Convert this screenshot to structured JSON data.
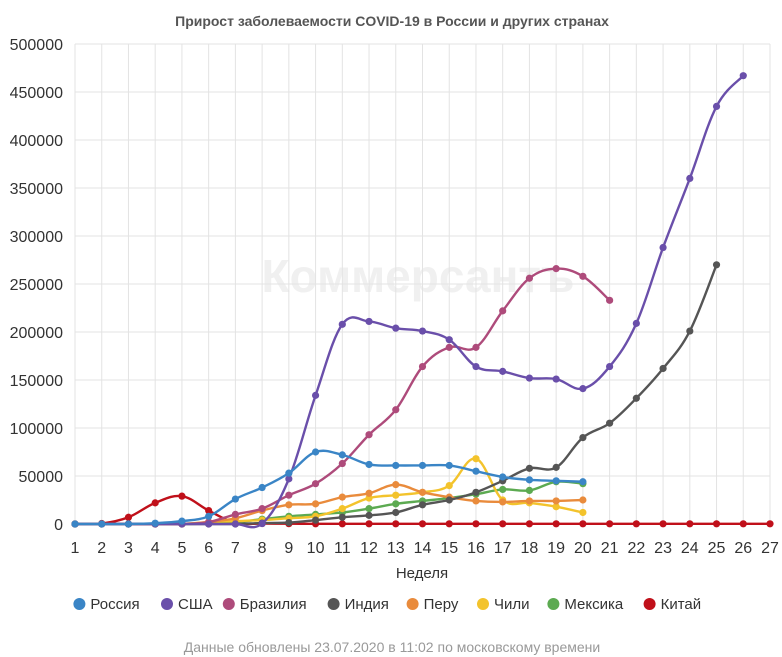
{
  "chart_data": {
    "type": "line",
    "title": "Прирост заболеваемости COVID-19 в России и других странах",
    "xlabel": "Неделя",
    "ylabel": "",
    "x": [
      1,
      2,
      3,
      4,
      5,
      6,
      7,
      8,
      9,
      10,
      11,
      12,
      13,
      14,
      15,
      16,
      17,
      18,
      19,
      20,
      21,
      22,
      23,
      24,
      25,
      26,
      27
    ],
    "xlim": [
      1,
      27
    ],
    "ylim": [
      0,
      500000
    ],
    "yticks": [
      "0",
      "50000",
      "100000",
      "150000",
      "200000",
      "250000",
      "300000",
      "350000",
      "400000",
      "450000",
      "500000"
    ],
    "grid": true,
    "legend_position": "bottom",
    "watermark": "Коммерсантъ",
    "footer": "Данные обновлены 23.07.2020 в 11:02 по московскому времени",
    "series": [
      {
        "name": "Россия",
        "color": "#3a85c6",
        "points": [
          [
            1,
            0
          ],
          [
            2,
            0
          ],
          [
            3,
            0
          ],
          [
            4,
            800
          ],
          [
            5,
            3000
          ],
          [
            6,
            8000
          ],
          [
            7,
            26000
          ],
          [
            8,
            38000
          ],
          [
            9,
            53000
          ],
          [
            10,
            75000
          ],
          [
            11,
            72000
          ],
          [
            12,
            62000
          ],
          [
            13,
            61000
          ],
          [
            14,
            61000
          ],
          [
            15,
            61000
          ],
          [
            16,
            55000
          ],
          [
            17,
            49000
          ],
          [
            18,
            46000
          ],
          [
            19,
            45000
          ],
          [
            20,
            44000
          ]
        ]
      },
      {
        "name": "США",
        "color": "#6a4faa",
        "points": [
          [
            1,
            0
          ],
          [
            2,
            0
          ],
          [
            3,
            0
          ],
          [
            4,
            0
          ],
          [
            5,
            0
          ],
          [
            6,
            0
          ],
          [
            7,
            0
          ],
          [
            8,
            500
          ],
          [
            9,
            47000
          ],
          [
            10,
            134000
          ],
          [
            11,
            208000
          ],
          [
            12,
            211000
          ],
          [
            13,
            204000
          ],
          [
            14,
            201000
          ],
          [
            15,
            192000
          ],
          [
            16,
            164000
          ],
          [
            17,
            159000
          ],
          [
            18,
            152000
          ],
          [
            19,
            151000
          ],
          [
            20,
            141000
          ],
          [
            21,
            164000
          ],
          [
            22,
            209000
          ],
          [
            23,
            288000
          ],
          [
            24,
            360000
          ],
          [
            25,
            435000
          ],
          [
            26,
            467000
          ]
        ]
      },
      {
        "name": "Бразилия",
        "color": "#ae4b7b",
        "points": [
          [
            1,
            0
          ],
          [
            2,
            0
          ],
          [
            3,
            0
          ],
          [
            4,
            0
          ],
          [
            5,
            0
          ],
          [
            6,
            2000
          ],
          [
            7,
            10000
          ],
          [
            8,
            16000
          ],
          [
            9,
            30000
          ],
          [
            10,
            42000
          ],
          [
            11,
            63000
          ],
          [
            12,
            93000
          ],
          [
            13,
            119000
          ],
          [
            14,
            164000
          ],
          [
            15,
            184000
          ],
          [
            16,
            184000
          ],
          [
            17,
            222000
          ],
          [
            18,
            256000
          ],
          [
            19,
            266000
          ],
          [
            20,
            258000
          ],
          [
            21,
            233000
          ]
        ]
      },
      {
        "name": "Индия",
        "color": "#555555",
        "points": [
          [
            1,
            0
          ],
          [
            2,
            0
          ],
          [
            3,
            0
          ],
          [
            4,
            0
          ],
          [
            5,
            0
          ],
          [
            6,
            0
          ],
          [
            7,
            0
          ],
          [
            8,
            1000
          ],
          [
            9,
            1500
          ],
          [
            10,
            4000
          ],
          [
            11,
            7000
          ],
          [
            12,
            9000
          ],
          [
            13,
            12000
          ],
          [
            14,
            20000
          ],
          [
            15,
            25000
          ],
          [
            16,
            33000
          ],
          [
            17,
            45000
          ],
          [
            18,
            58000
          ],
          [
            19,
            59000
          ],
          [
            20,
            90000
          ],
          [
            21,
            105000
          ],
          [
            22,
            131000
          ],
          [
            23,
            162000
          ],
          [
            24,
            201000
          ],
          [
            25,
            270000
          ]
        ]
      },
      {
        "name": "Перу",
        "color": "#e98b3c",
        "points": [
          [
            1,
            0
          ],
          [
            2,
            0
          ],
          [
            3,
            0
          ],
          [
            4,
            0
          ],
          [
            5,
            0
          ],
          [
            6,
            2000
          ],
          [
            7,
            6000
          ],
          [
            8,
            14000
          ],
          [
            9,
            20000
          ],
          [
            10,
            21000
          ],
          [
            11,
            28000
          ],
          [
            12,
            32000
          ],
          [
            13,
            41000
          ],
          [
            14,
            33000
          ],
          [
            15,
            28000
          ],
          [
            16,
            24000
          ],
          [
            17,
            23000
          ],
          [
            18,
            24000
          ],
          [
            19,
            24000
          ],
          [
            20,
            25000
          ]
        ]
      },
      {
        "name": "Чили",
        "color": "#f3c32c",
        "points": [
          [
            1,
            0
          ],
          [
            2,
            0
          ],
          [
            3,
            0
          ],
          [
            4,
            0
          ],
          [
            5,
            0
          ],
          [
            6,
            2000
          ],
          [
            7,
            3000
          ],
          [
            8,
            4000
          ],
          [
            9,
            6000
          ],
          [
            10,
            8000
          ],
          [
            11,
            16000
          ],
          [
            12,
            27000
          ],
          [
            13,
            30000
          ],
          [
            14,
            33000
          ],
          [
            15,
            40000
          ],
          [
            16,
            68000
          ],
          [
            17,
            25000
          ],
          [
            18,
            22000
          ],
          [
            19,
            18000
          ],
          [
            20,
            12000
          ]
        ]
      },
      {
        "name": "Мексика",
        "color": "#5caa51",
        "points": [
          [
            1,
            0
          ],
          [
            2,
            0
          ],
          [
            3,
            0
          ],
          [
            4,
            0
          ],
          [
            5,
            0
          ],
          [
            6,
            500
          ],
          [
            7,
            2000
          ],
          [
            8,
            5000
          ],
          [
            9,
            8000
          ],
          [
            10,
            10000
          ],
          [
            11,
            12000
          ],
          [
            12,
            16000
          ],
          [
            13,
            21000
          ],
          [
            14,
            24000
          ],
          [
            15,
            27000
          ],
          [
            16,
            31000
          ],
          [
            17,
            36000
          ],
          [
            18,
            35000
          ],
          [
            19,
            44000
          ],
          [
            20,
            42000
          ]
        ]
      },
      {
        "name": "Китай",
        "color": "#c0101a",
        "points": [
          [
            1,
            0
          ],
          [
            2,
            500
          ],
          [
            3,
            7000
          ],
          [
            4,
            22000
          ],
          [
            5,
            29000
          ],
          [
            6,
            14000
          ],
          [
            7,
            1000
          ],
          [
            8,
            500
          ],
          [
            9,
            300
          ],
          [
            10,
            200
          ],
          [
            11,
            200
          ],
          [
            12,
            200
          ],
          [
            13,
            200
          ],
          [
            14,
            200
          ],
          [
            15,
            200
          ],
          [
            16,
            200
          ],
          [
            17,
            200
          ],
          [
            18,
            200
          ],
          [
            19,
            200
          ],
          [
            20,
            200
          ],
          [
            21,
            200
          ],
          [
            22,
            200
          ],
          [
            23,
            200
          ],
          [
            24,
            200
          ],
          [
            25,
            200
          ],
          [
            26,
            200
          ],
          [
            27,
            200
          ]
        ]
      }
    ]
  }
}
